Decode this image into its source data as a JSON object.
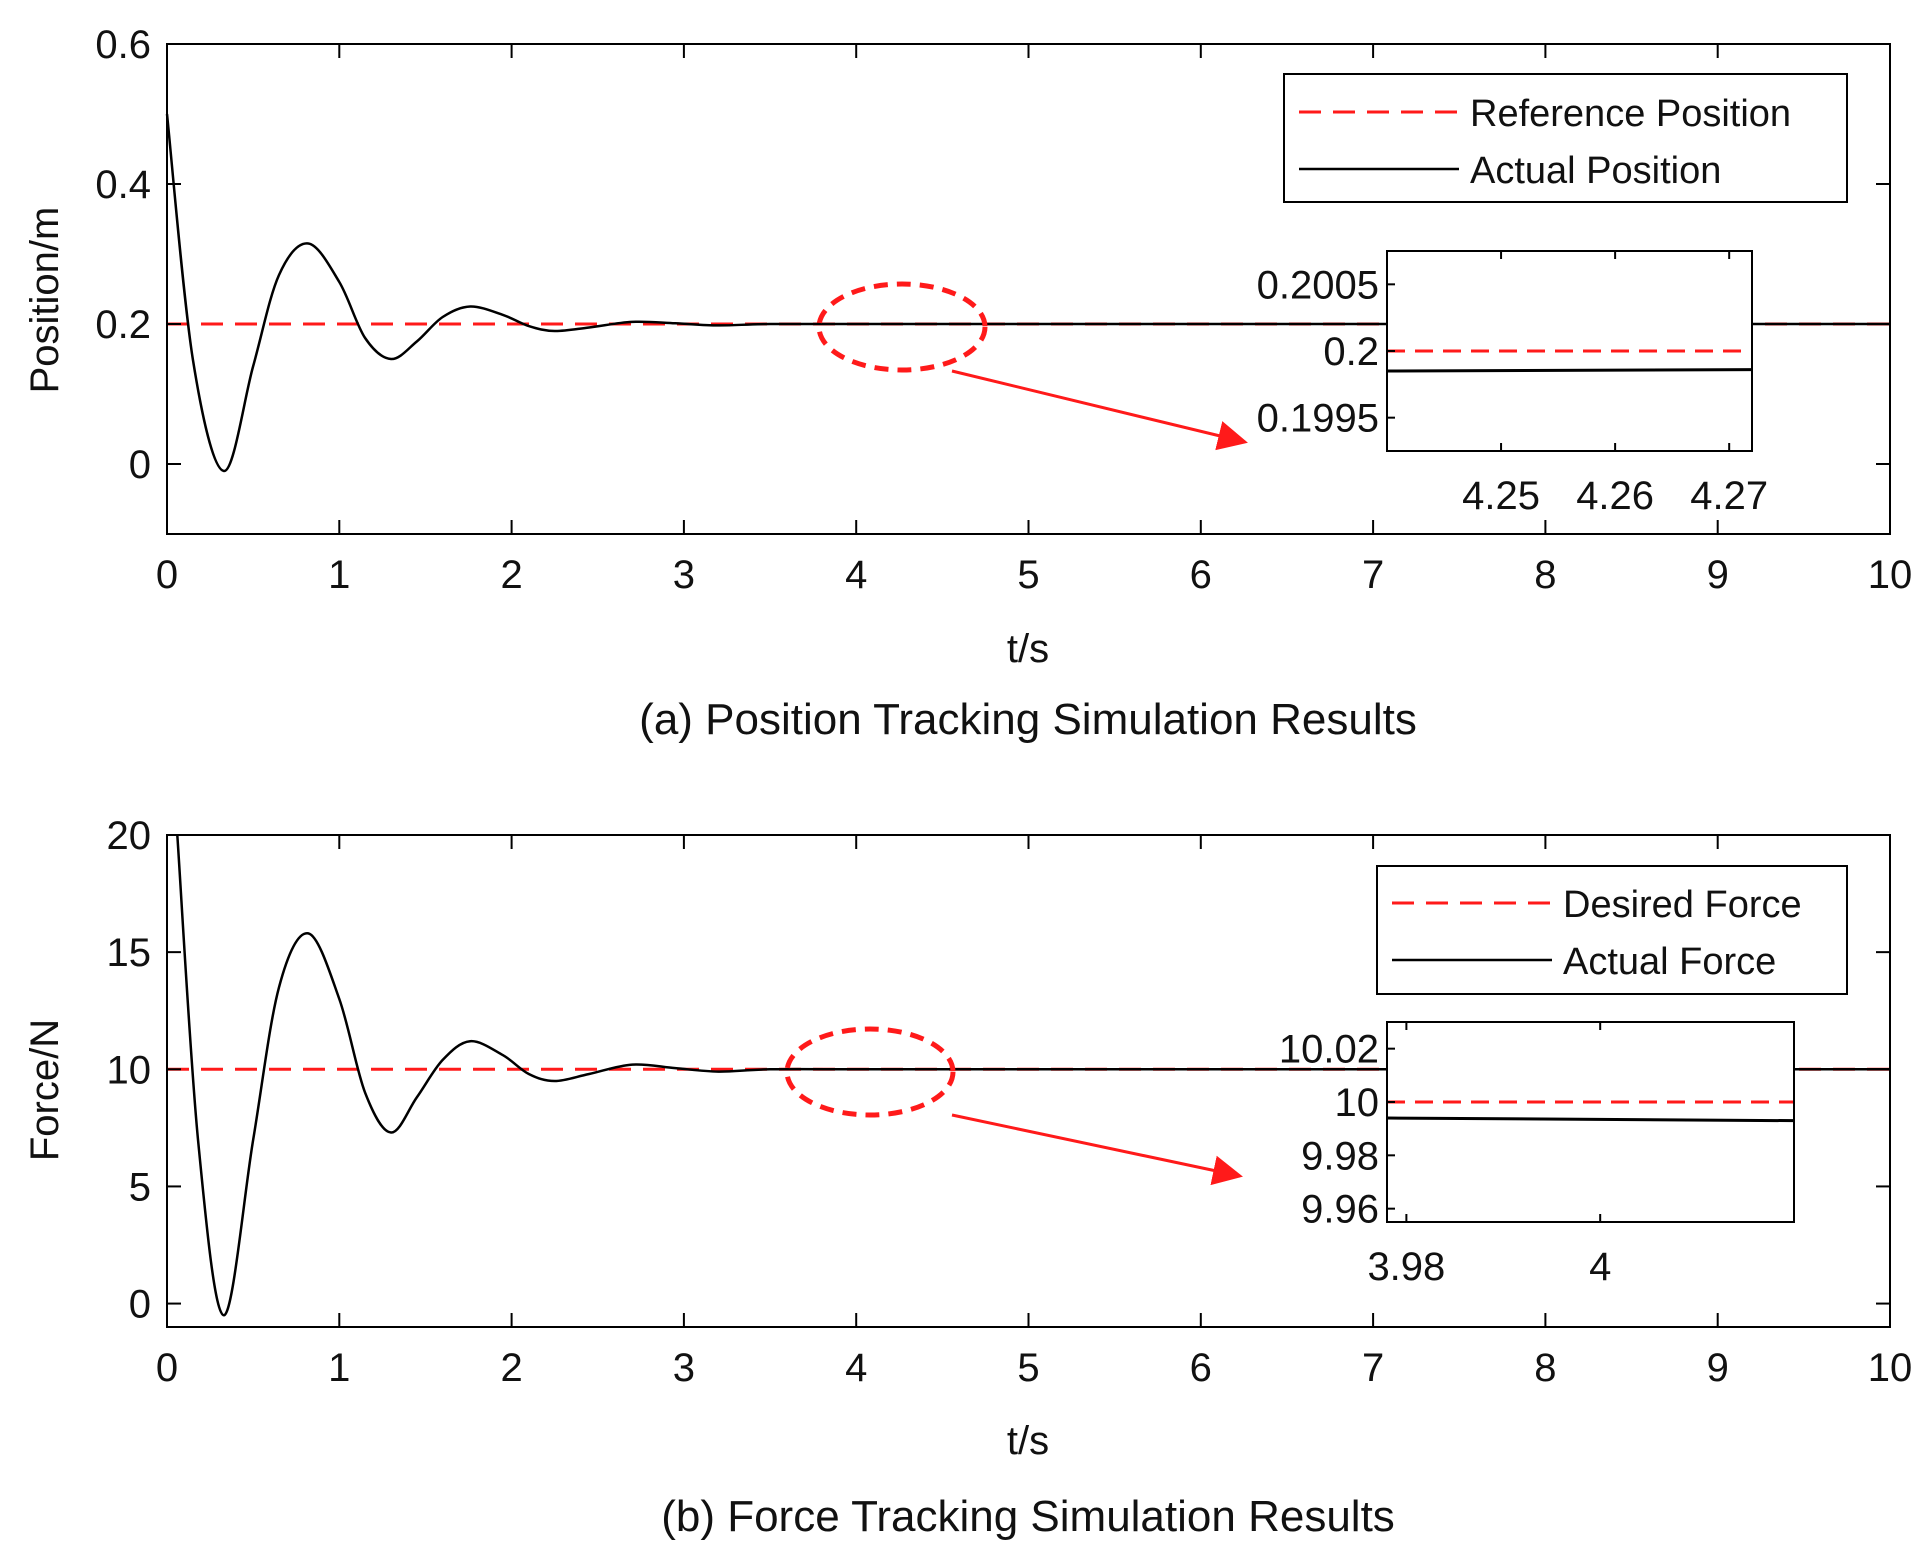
{
  "chart_data": [
    {
      "type": "line",
      "caption": "(a) Position Tracking Simulation Results",
      "xlabel": "t/s",
      "ylabel": "Position/m",
      "xlim": [
        0,
        10
      ],
      "ylim": [
        -0.1,
        0.6
      ],
      "xticks": [
        0,
        1,
        2,
        3,
        4,
        5,
        6,
        7,
        8,
        9,
        10
      ],
      "yticks": [
        0,
        0.2,
        0.4,
        0.6
      ],
      "ytick_labels": [
        "0",
        "0.2",
        "0.4",
        "0.6"
      ],
      "legend": [
        "Reference Position",
        "Actual Position"
      ],
      "legend_placement": "top-right",
      "colors": {
        "reference": "#ff1a1a",
        "actual": "#000000"
      },
      "series": [
        {
          "name": "Reference Position",
          "style": "dashed",
          "x": [
            0,
            10
          ],
          "y": [
            0.2,
            0.2
          ]
        },
        {
          "name": "Actual Position",
          "style": "solid",
          "x": [
            0,
            0.15,
            0.33,
            0.5,
            0.65,
            0.82,
            1.0,
            1.15,
            1.3,
            1.45,
            1.6,
            1.76,
            1.95,
            2.1,
            2.25,
            2.45,
            2.7,
            2.95,
            3.2,
            3.5,
            4.0,
            4.5,
            5,
            6,
            7,
            8,
            9,
            10
          ],
          "y": [
            0.5,
            0.15,
            -0.01,
            0.14,
            0.27,
            0.315,
            0.26,
            0.18,
            0.15,
            0.175,
            0.21,
            0.225,
            0.213,
            0.197,
            0.19,
            0.195,
            0.203,
            0.201,
            0.198,
            0.2,
            0.2,
            0.2,
            0.2,
            0.2,
            0.2,
            0.2,
            0.2,
            0.2
          ]
        }
      ],
      "zoom_region": {
        "x_center": 4.25,
        "y_center": 0.2
      },
      "inset": {
        "xlim": [
          4.24,
          4.272
        ],
        "ylim": [
          0.19925,
          0.20075
        ],
        "xticks": [
          4.25,
          4.26,
          4.27
        ],
        "xtick_labels": [
          "4.25",
          "4.26",
          "4.27"
        ],
        "yticks": [
          0.1995,
          0.2,
          0.2005
        ],
        "ytick_labels": [
          "0.1995",
          "0.2",
          "0.2005"
        ],
        "reference": 0.2,
        "actual": [
          0.19985,
          0.19986
        ]
      }
    },
    {
      "type": "line",
      "caption": "(b) Force Tracking Simulation Results",
      "xlabel": "t/s",
      "ylabel": "Force/N",
      "xlim": [
        0,
        10
      ],
      "ylim": [
        -1,
        20
      ],
      "xticks": [
        0,
        1,
        2,
        3,
        4,
        5,
        6,
        7,
        8,
        9,
        10
      ],
      "yticks": [
        0,
        5,
        10,
        15,
        20
      ],
      "ytick_labels": [
        "0",
        "5",
        "10",
        "15",
        "20"
      ],
      "legend": [
        "Desired Force",
        "Actual Force"
      ],
      "legend_placement": "top-right",
      "colors": {
        "reference": "#ff1a1a",
        "actual": "#000000"
      },
      "series": [
        {
          "name": "Desired Force",
          "style": "dashed",
          "x": [
            0,
            10
          ],
          "y": [
            10,
            10
          ]
        },
        {
          "name": "Actual Force",
          "style": "solid",
          "x": [
            0.06,
            0.18,
            0.33,
            0.5,
            0.65,
            0.82,
            1.0,
            1.15,
            1.3,
            1.45,
            1.6,
            1.76,
            1.95,
            2.1,
            2.25,
            2.45,
            2.7,
            2.95,
            3.2,
            3.5,
            4.0,
            4.5,
            5,
            6,
            7,
            8,
            9,
            10
          ],
          "y": [
            20,
            7.0,
            -0.5,
            7.0,
            13.5,
            15.8,
            13.0,
            9.0,
            7.3,
            8.8,
            10.4,
            11.2,
            10.6,
            9.8,
            9.5,
            9.8,
            10.2,
            10.05,
            9.9,
            10.0,
            10.0,
            10.0,
            10.0,
            10.0,
            10.0,
            10.0,
            10.0,
            10.0
          ]
        }
      ],
      "zoom_region": {
        "x_center": 4.0,
        "y_center": 10
      },
      "inset": {
        "xlim": [
          3.978,
          4.02
        ],
        "ylim": [
          9.955,
          10.03
        ],
        "xticks": [
          3.98,
          4.0
        ],
        "xtick_labels": [
          "3.98",
          "4"
        ],
        "yticks": [
          9.96,
          9.98,
          10,
          10.02
        ],
        "ytick_labels": [
          "9.96",
          "9.98",
          "10",
          "10.02"
        ],
        "reference": 10.0,
        "actual": [
          9.994,
          9.993
        ]
      }
    }
  ]
}
